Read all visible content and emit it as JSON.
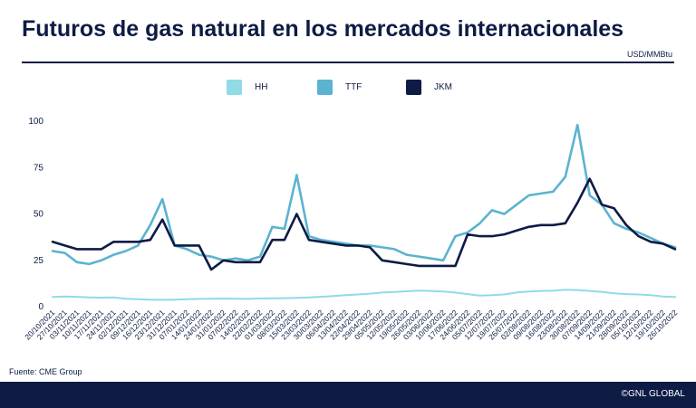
{
  "header": {
    "title": "Futuros de gas natural en los mercados internacionales",
    "unit": "USD/MMBtu"
  },
  "footer": {
    "source": "Fuente: CME Group",
    "brand": "©GNL GLOBAL"
  },
  "chart_data": {
    "type": "line",
    "title": "Futuros de gas natural en los mercados internacionales",
    "ylim": [
      0,
      100
    ],
    "yticks": [
      0,
      25,
      50,
      75,
      100
    ],
    "grid": false,
    "legend_position": "top",
    "x_ticks": [
      "20/10/2021",
      "27/10/2021",
      "03/11/2021",
      "10/11/2021",
      "17/11/2021",
      "24/11/2021",
      "02/12/2021",
      "09/12/2021",
      "16/12/2021",
      "23/12/2021",
      "31/12/2021",
      "07/01/2022",
      "14/01/2022",
      "24/01/2022",
      "31/01/2022",
      "07/02/2022",
      "14/02/2022",
      "22/02/2022",
      "01/03/2022",
      "08/03/2022",
      "15/03/2022",
      "23/03/2022",
      "30/03/2022",
      "06/04/2022",
      "13/04/2022",
      "22/04/2022",
      "29/04/2022",
      "05/05/2022",
      "12/05/2022",
      "19/05/2022",
      "26/05/2022",
      "03/06/2022",
      "10/06/2022",
      "17/06/2022",
      "24/06/2022",
      "05/07/2022",
      "12/07/2022",
      "19/07/2022",
      "26/07/2022",
      "02/08/2022",
      "09/08/2022",
      "16/08/2022",
      "23/08/2022",
      "30/08/2022",
      "07/09/2022",
      "14/09/2022",
      "21/09/2022",
      "28/09/2022",
      "05/10/2022",
      "12/10/2022",
      "19/10/2022",
      "26/10/2022"
    ],
    "series": [
      {
        "name": "HH",
        "color": "#8fdbe6",
        "values": [
          5.2,
          5.5,
          5.3,
          5.0,
          4.9,
          5.0,
          4.3,
          4.0,
          3.8,
          3.7,
          3.8,
          4.0,
          4.2,
          4.3,
          4.4,
          4.3,
          4.2,
          4.4,
          4.5,
          4.6,
          4.8,
          5.0,
          5.3,
          5.7,
          6.2,
          6.6,
          7.0,
          7.6,
          7.9,
          8.3,
          8.7,
          8.5,
          8.2,
          7.6,
          6.8,
          6.0,
          6.2,
          6.6,
          7.6,
          8.2,
          8.5,
          8.6,
          9.1,
          9.0,
          8.5,
          8.0,
          7.2,
          6.8,
          6.6,
          6.2,
          5.5,
          5.2
        ]
      },
      {
        "name": "TTF",
        "color": "#5bb3cf",
        "values": [
          30,
          29,
          24,
          23,
          25,
          28,
          30,
          33,
          44,
          58,
          33,
          31,
          28,
          27,
          25,
          26,
          25,
          27,
          43,
          42,
          71,
          38,
          36,
          35,
          34,
          33,
          33,
          32,
          31,
          28,
          27,
          26,
          25,
          38,
          40,
          45,
          52,
          50,
          55,
          60,
          61,
          62,
          70,
          98,
          60,
          55,
          45,
          42,
          40,
          37,
          34,
          32
        ]
      },
      {
        "name": "JKM",
        "color": "#0d1b45",
        "values": [
          35,
          33,
          31,
          31,
          31,
          35,
          35,
          35,
          36,
          47,
          33,
          33,
          33,
          20,
          25,
          24,
          24,
          24,
          36,
          36,
          50,
          36,
          35,
          34,
          33,
          33,
          32,
          25,
          24,
          23,
          22,
          22,
          22,
          22,
          39,
          38,
          38,
          39,
          41,
          43,
          44,
          44,
          45,
          56,
          69,
          55,
          53,
          44,
          38,
          35,
          34,
          31
        ]
      }
    ]
  }
}
